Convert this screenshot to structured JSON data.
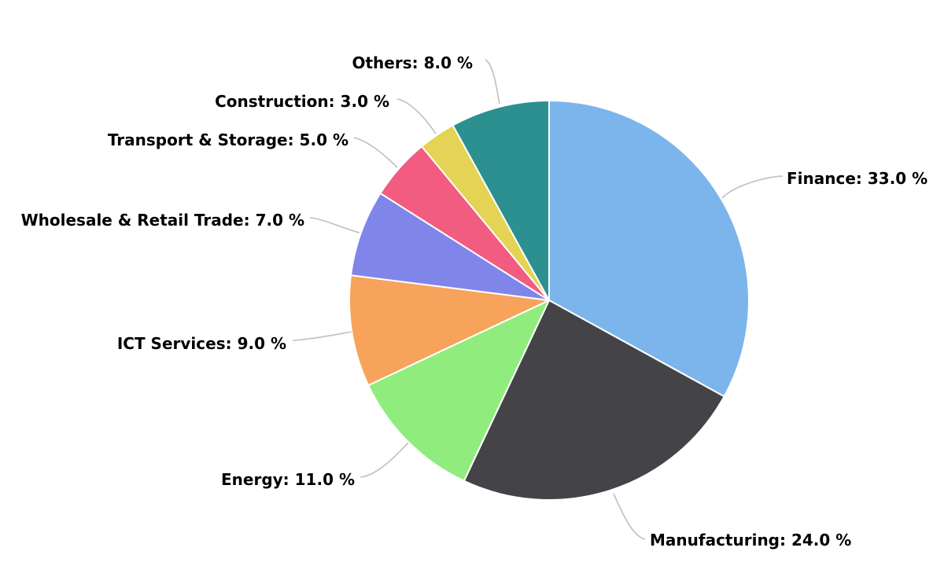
{
  "chart_data": {
    "type": "pie",
    "title": "",
    "start_angle_deg": 0,
    "direction": "clockwise",
    "slices": [
      {
        "label": "Finance",
        "value": 33.0,
        "display": "Finance: 33.0 %",
        "color": "#7CB5EC"
      },
      {
        "label": "Manufacturing",
        "value": 24.0,
        "display": "Manufacturing: 24.0 %",
        "color": "#434348"
      },
      {
        "label": "Energy",
        "value": 11.0,
        "display": "Energy: 11.0 %",
        "color": "#90ED7D"
      },
      {
        "label": "ICT Services",
        "value": 9.0,
        "display": "ICT Services: 9.0 %",
        "color": "#F7A35C"
      },
      {
        "label": "Wholesale & Retail Trade",
        "value": 7.0,
        "display": "Wholesale & Retail Trade: 7.0 %",
        "color": "#8085E9"
      },
      {
        "label": "Transport & Storage",
        "value": 5.0,
        "display": "Transport & Storage: 5.0 %",
        "color": "#F15C80"
      },
      {
        "label": "Construction",
        "value": 3.0,
        "display": "Construction: 3.0 %",
        "color": "#E4D354"
      },
      {
        "label": "Others",
        "value": 8.0,
        "display": "Others: 8.0 %",
        "color": "#2B908F"
      }
    ]
  }
}
